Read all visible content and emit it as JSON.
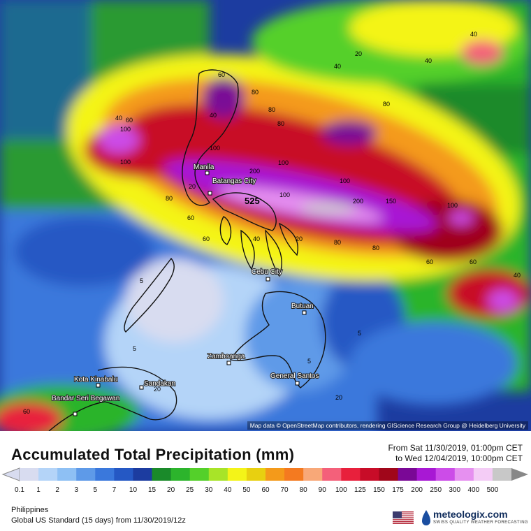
{
  "title": "Accumulated Total Precipitation (mm)",
  "date_range": {
    "from": "From Sat 11/30/2019, 01:00pm CET",
    "to": "to Wed 12/04/2019, 10:00pm CET"
  },
  "region": "Philippines",
  "model_run": "Global US Standard (15 days) from 11/30/2019/12z",
  "attribution": "Map data © OpenStreetMap contributors, rendering GIScience Research Group @ Heidelberg University",
  "brand": {
    "name": "meteologix.com",
    "tagline": "SWISS QUALITY WEATHER FORECASTING"
  },
  "cities": [
    {
      "name": "Manila"
    },
    {
      "name": "Batangas City"
    },
    {
      "name": "Cebu City"
    },
    {
      "name": "Butuan"
    },
    {
      "name": "Zamboanga"
    },
    {
      "name": "General Santos"
    },
    {
      "name": "Kota Kinabalu"
    },
    {
      "name": "Sandakan"
    },
    {
      "name": "Bandar Seri Begawan"
    }
  ],
  "contour_labels": [
    "60",
    "80",
    "40",
    "60",
    "100",
    "100",
    "80",
    "200",
    "100",
    "80",
    "80",
    "80",
    "60",
    "40",
    "20",
    "40",
    "100",
    "80",
    "60",
    "40",
    "200",
    "150",
    "100",
    "525",
    "100",
    "40",
    "20",
    "80",
    "60",
    "40",
    "5",
    "5",
    "5",
    "5",
    "20",
    "20",
    "60",
    "40",
    "20",
    "100",
    "60"
  ],
  "legend": {
    "units": "mm",
    "ticks": [
      "0.1",
      "1",
      "2",
      "3",
      "5",
      "7",
      "10",
      "15",
      "20",
      "25",
      "30",
      "40",
      "50",
      "60",
      "70",
      "80",
      "90",
      "100",
      "125",
      "150",
      "175",
      "200",
      "250",
      "300",
      "400",
      "500"
    ],
    "colors": [
      "#d8dcf0",
      "#b4d4f8",
      "#8ec0f4",
      "#5e9ae8",
      "#3a78dc",
      "#2558c4",
      "#1c3ca0",
      "#1a8a2a",
      "#2cb42c",
      "#54d02a",
      "#a8e428",
      "#f4f418",
      "#e8d010",
      "#f49a1a",
      "#f47a20",
      "#f8a878",
      "#f4607a",
      "#e8203c",
      "#c80c28",
      "#a0061a",
      "#7a0896",
      "#a818d4",
      "#cc4ce8",
      "#e690f0",
      "#f4ccf6",
      "#c8c8c8"
    ]
  }
}
